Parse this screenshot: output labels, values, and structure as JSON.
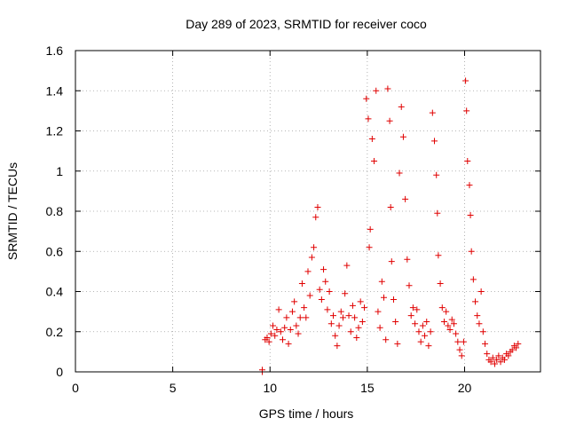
{
  "chart_data": {
    "type": "scatter",
    "title": "Day 289 of 2023, SRMTID for receiver coco",
    "xlabel": "GPS time / hours",
    "ylabel": "SRMTID / TECUs",
    "xlim": [
      0,
      23.9
    ],
    "ylim": [
      0,
      1.6
    ],
    "xticks": [
      0,
      5,
      10,
      15,
      20
    ],
    "xtick_labels": [
      "0",
      "5",
      "10",
      "15",
      "20"
    ],
    "yticks": [
      0,
      0.2,
      0.4,
      0.6,
      0.8,
      1.0,
      1.2,
      1.4,
      1.6
    ],
    "ytick_labels": [
      "0",
      "0.2",
      "0.4",
      "0.6",
      "0.8",
      "1",
      "1.2",
      "1.4",
      "1.6"
    ],
    "grid": true,
    "marker": "+",
    "marker_color": "#e00000",
    "series": [
      {
        "name": "SRMTID",
        "points": [
          [
            9.6,
            0.0
          ],
          [
            9.6,
            0.01
          ],
          [
            9.75,
            0.16
          ],
          [
            9.85,
            0.17
          ],
          [
            9.95,
            0.15
          ],
          [
            10.05,
            0.19
          ],
          [
            10.15,
            0.23
          ],
          [
            10.25,
            0.18
          ],
          [
            10.35,
            0.21
          ],
          [
            10.45,
            0.31
          ],
          [
            10.55,
            0.2
          ],
          [
            10.65,
            0.16
          ],
          [
            10.75,
            0.22
          ],
          [
            10.85,
            0.27
          ],
          [
            10.95,
            0.14
          ],
          [
            11.05,
            0.21
          ],
          [
            11.15,
            0.3
          ],
          [
            11.25,
            0.35
          ],
          [
            11.35,
            0.23
          ],
          [
            11.45,
            0.19
          ],
          [
            11.55,
            0.27
          ],
          [
            11.65,
            0.44
          ],
          [
            11.75,
            0.32
          ],
          [
            11.85,
            0.27
          ],
          [
            11.95,
            0.5
          ],
          [
            12.05,
            0.38
          ],
          [
            12.15,
            0.57
          ],
          [
            12.25,
            0.62
          ],
          [
            12.35,
            0.77
          ],
          [
            12.45,
            0.82
          ],
          [
            12.55,
            0.41
          ],
          [
            12.65,
            0.36
          ],
          [
            12.75,
            0.51
          ],
          [
            12.85,
            0.45
          ],
          [
            12.95,
            0.31
          ],
          [
            13.05,
            0.4
          ],
          [
            13.15,
            0.24
          ],
          [
            13.25,
            0.28
          ],
          [
            13.35,
            0.18
          ],
          [
            13.45,
            0.13
          ],
          [
            13.55,
            0.23
          ],
          [
            13.65,
            0.3
          ],
          [
            13.75,
            0.27
          ],
          [
            13.85,
            0.39
          ],
          [
            13.95,
            0.53
          ],
          [
            14.05,
            0.28
          ],
          [
            14.15,
            0.2
          ],
          [
            14.25,
            0.33
          ],
          [
            14.35,
            0.27
          ],
          [
            14.45,
            0.17
          ],
          [
            14.55,
            0.22
          ],
          [
            14.65,
            0.35
          ],
          [
            14.75,
            0.25
          ],
          [
            14.85,
            0.32
          ],
          [
            14.95,
            1.36
          ],
          [
            15.05,
            1.26
          ],
          [
            15.1,
            0.62
          ],
          [
            15.15,
            0.71
          ],
          [
            15.25,
            1.16
          ],
          [
            15.35,
            1.05
          ],
          [
            15.45,
            1.4
          ],
          [
            15.55,
            0.3
          ],
          [
            15.65,
            0.22
          ],
          [
            15.75,
            0.45
          ],
          [
            15.85,
            0.37
          ],
          [
            15.95,
            0.16
          ],
          [
            16.05,
            1.41
          ],
          [
            16.15,
            1.25
          ],
          [
            16.2,
            0.82
          ],
          [
            16.25,
            0.55
          ],
          [
            16.35,
            0.36
          ],
          [
            16.45,
            0.25
          ],
          [
            16.55,
            0.14
          ],
          [
            16.65,
            0.99
          ],
          [
            16.75,
            1.32
          ],
          [
            16.85,
            1.17
          ],
          [
            16.95,
            0.86
          ],
          [
            17.05,
            0.56
          ],
          [
            17.15,
            0.43
          ],
          [
            17.25,
            0.28
          ],
          [
            17.35,
            0.32
          ],
          [
            17.45,
            0.24
          ],
          [
            17.55,
            0.31
          ],
          [
            17.65,
            0.2
          ],
          [
            17.75,
            0.15
          ],
          [
            17.85,
            0.23
          ],
          [
            17.95,
            0.18
          ],
          [
            18.05,
            0.25
          ],
          [
            18.15,
            0.13
          ],
          [
            18.25,
            0.2
          ],
          [
            18.35,
            1.29
          ],
          [
            18.45,
            1.15
          ],
          [
            18.55,
            0.98
          ],
          [
            18.6,
            0.79
          ],
          [
            18.65,
            0.58
          ],
          [
            18.75,
            0.44
          ],
          [
            18.85,
            0.32
          ],
          [
            18.95,
            0.25
          ],
          [
            19.05,
            0.3
          ],
          [
            19.15,
            0.23
          ],
          [
            19.25,
            0.21
          ],
          [
            19.35,
            0.26
          ],
          [
            19.45,
            0.24
          ],
          [
            19.55,
            0.19
          ],
          [
            19.65,
            0.15
          ],
          [
            19.75,
            0.11
          ],
          [
            19.85,
            0.08
          ],
          [
            19.95,
            0.15
          ],
          [
            20.05,
            1.45
          ],
          [
            20.1,
            1.3
          ],
          [
            20.15,
            1.05
          ],
          [
            20.25,
            0.93
          ],
          [
            20.3,
            0.78
          ],
          [
            20.35,
            0.6
          ],
          [
            20.45,
            0.46
          ],
          [
            20.55,
            0.35
          ],
          [
            20.65,
            0.28
          ],
          [
            20.75,
            0.24
          ],
          [
            20.85,
            0.4
          ],
          [
            20.95,
            0.2
          ],
          [
            21.05,
            0.14
          ],
          [
            21.15,
            0.09
          ],
          [
            21.25,
            0.06
          ],
          [
            21.35,
            0.05
          ],
          [
            21.45,
            0.07
          ],
          [
            21.55,
            0.04
          ],
          [
            21.65,
            0.06
          ],
          [
            21.75,
            0.08
          ],
          [
            21.85,
            0.05
          ],
          [
            21.95,
            0.07
          ],
          [
            22.05,
            0.06
          ],
          [
            22.15,
            0.09
          ],
          [
            22.25,
            0.08
          ],
          [
            22.35,
            0.1
          ],
          [
            22.45,
            0.11
          ],
          [
            22.55,
            0.13
          ],
          [
            22.65,
            0.12
          ],
          [
            22.75,
            0.14
          ]
        ]
      }
    ]
  }
}
